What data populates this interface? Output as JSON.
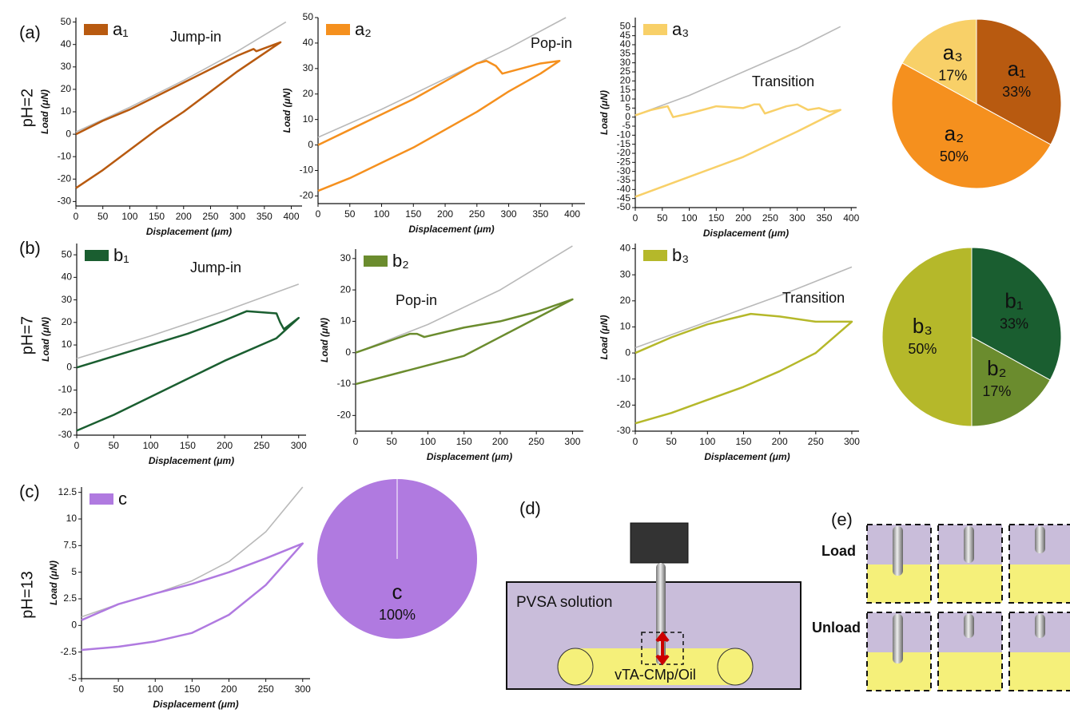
{
  "chart_data": [
    {
      "type": "line",
      "panel": "(a)",
      "row_label": "pH=2",
      "annotation": "Jump-in",
      "x_label": "Displacement (μm)",
      "y_label": "Load (μN)",
      "xlim": [
        0,
        420
      ],
      "xticks": [
        0,
        50,
        100,
        150,
        200,
        250,
        300,
        350,
        400
      ],
      "ylim": [
        -32,
        52
      ],
      "yticks": [
        -30,
        -20,
        -10,
        0,
        10,
        20,
        30,
        40,
        50
      ],
      "series": [
        {
          "color": "#b9b9b9",
          "x": [
            0,
            100,
            200,
            300,
            390
          ],
          "values": [
            1,
            12,
            24,
            37,
            50
          ]
        },
        {
          "name": "a₁",
          "color": "#b85a10",
          "x": [
            0,
            50,
            100,
            150,
            200,
            250,
            300,
            330,
            335,
            380,
            300,
            250,
            200,
            150,
            100,
            50,
            0
          ],
          "values": [
            0,
            6,
            11,
            17,
            23,
            29,
            35,
            38,
            37,
            41,
            28,
            19,
            10,
            2,
            -7,
            -16,
            -24
          ]
        }
      ]
    },
    {
      "type": "line",
      "annotation": "Pop-in",
      "x_label": "Displacement (μm)",
      "y_label": "Load (μN)",
      "xlim": [
        0,
        420
      ],
      "xticks": [
        0,
        50,
        100,
        150,
        200,
        250,
        300,
        350,
        400
      ],
      "ylim": [
        -23,
        50
      ],
      "yticks": [
        -20,
        -10,
        0,
        10,
        20,
        30,
        40,
        50
      ],
      "series": [
        {
          "color": "#b9b9b9",
          "x": [
            0,
            100,
            200,
            300,
            390
          ],
          "values": [
            3,
            14,
            26,
            38,
            50
          ]
        },
        {
          "name": "a₂",
          "color": "#f5901e",
          "x": [
            0,
            50,
            100,
            150,
            200,
            250,
            265,
            280,
            290,
            320,
            350,
            380,
            350,
            300,
            250,
            200,
            150,
            100,
            50,
            0
          ],
          "values": [
            0,
            6,
            12,
            18,
            25,
            32,
            33,
            31,
            28,
            30,
            32,
            33,
            28,
            21,
            13,
            6,
            -1,
            -7,
            -13,
            -18
          ]
        }
      ]
    },
    {
      "type": "line",
      "annotation": "Transition",
      "x_label": "Displacement (μm)",
      "y_label": "Load (μN)",
      "xlim": [
        0,
        410
      ],
      "xticks": [
        0,
        50,
        100,
        150,
        200,
        250,
        300,
        350,
        400
      ],
      "ylim": [
        -50,
        55
      ],
      "yticks": [
        -50,
        -45,
        -40,
        -35,
        -30,
        -25,
        -20,
        -15,
        -10,
        -5,
        0,
        5,
        10,
        15,
        20,
        25,
        30,
        35,
        40,
        45,
        50
      ],
      "series": [
        {
          "color": "#b9b9b9",
          "x": [
            0,
            100,
            200,
            300,
            380
          ],
          "values": [
            1,
            12,
            25,
            38,
            50
          ]
        },
        {
          "name": "a₃",
          "color": "#f8d068",
          "x": [
            0,
            30,
            60,
            70,
            100,
            150,
            200,
            220,
            230,
            240,
            280,
            300,
            320,
            340,
            360,
            380,
            300,
            200,
            100,
            0
          ],
          "values": [
            1,
            4,
            6,
            0,
            2,
            6,
            5,
            7,
            7,
            2,
            6,
            7,
            4,
            5,
            3,
            4,
            -8,
            -22,
            -33,
            -44
          ]
        }
      ]
    },
    {
      "type": "pie",
      "categories": [
        "a₁",
        "a₂",
        "a₃"
      ],
      "values": [
        33,
        50,
        17
      ],
      "value_labels": [
        "33%",
        "50%",
        "17%"
      ],
      "colors": [
        "#b85a10",
        "#f5901e",
        "#f8d068"
      ]
    },
    {
      "type": "line",
      "panel": "(b)",
      "row_label": "pH=7",
      "annotation": "Jump-in",
      "x_label": "Displacement (μm)",
      "y_label": "Load (μN)",
      "xlim": [
        0,
        310
      ],
      "xticks": [
        0,
        50,
        100,
        150,
        200,
        250,
        300
      ],
      "ylim": [
        -30,
        55
      ],
      "yticks": [
        -30,
        -20,
        -10,
        0,
        10,
        20,
        30,
        40,
        50
      ],
      "series": [
        {
          "color": "#b9b9b9",
          "x": [
            0,
            100,
            200,
            300
          ],
          "values": [
            4,
            14,
            25,
            37
          ]
        },
        {
          "name": "b₁",
          "color": "#1a5e30",
          "x": [
            0,
            50,
            100,
            150,
            200,
            230,
            270,
            275,
            280,
            300,
            270,
            200,
            150,
            100,
            50,
            0
          ],
          "values": [
            0,
            5,
            10,
            15,
            21,
            25,
            24,
            20,
            17,
            22,
            13,
            3,
            -5,
            -13,
            -21,
            -28
          ]
        }
      ]
    },
    {
      "type": "line",
      "annotation": "Pop-in",
      "x_label": "Displacement (μm)",
      "y_label": "Load (μN)",
      "xlim": [
        0,
        315
      ],
      "xticks": [
        0,
        50,
        100,
        150,
        200,
        250,
        300
      ],
      "ylim": [
        -25,
        33
      ],
      "yticks": [
        -20,
        -10,
        0,
        10,
        20,
        30
      ],
      "series": [
        {
          "color": "#b9b9b9",
          "x": [
            0,
            100,
            200,
            300
          ],
          "values": [
            0,
            9,
            20,
            34
          ]
        },
        {
          "name": "b₂",
          "color": "#6b8c2e",
          "x": [
            0,
            50,
            75,
            85,
            95,
            150,
            200,
            250,
            300,
            250,
            200,
            150,
            100,
            50,
            0
          ],
          "values": [
            0,
            4,
            6,
            6,
            5,
            8,
            10,
            13,
            17,
            11,
            5,
            -1,
            -4,
            -7,
            -10
          ]
        }
      ]
    },
    {
      "type": "line",
      "annotation": "Transition",
      "x_label": "Displacement (μm)",
      "y_label": "Load (μN)",
      "xlim": [
        0,
        310
      ],
      "xticks": [
        0,
        50,
        100,
        150,
        200,
        250,
        300
      ],
      "ylim": [
        -30,
        42
      ],
      "yticks": [
        -30,
        -20,
        -10,
        0,
        10,
        20,
        30,
        40
      ],
      "series": [
        {
          "color": "#b9b9b9",
          "x": [
            0,
            100,
            200,
            300
          ],
          "values": [
            2,
            12,
            22,
            33
          ]
        },
        {
          "name": "b₃",
          "color": "#b5b82a",
          "x": [
            0,
            50,
            100,
            160,
            200,
            250,
            300,
            250,
            200,
            150,
            100,
            50,
            0
          ],
          "values": [
            0,
            6,
            11,
            15,
            14,
            12,
            12,
            0,
            -7,
            -13,
            -18,
            -23,
            -27
          ]
        }
      ]
    },
    {
      "type": "pie",
      "categories": [
        "b₁",
        "b₂",
        "b₃"
      ],
      "values": [
        33,
        17,
        50
      ],
      "value_labels": [
        "33%",
        "17%",
        "50%"
      ],
      "colors": [
        "#1a5e30",
        "#6b8c2e",
        "#b5b82a"
      ]
    },
    {
      "type": "line",
      "panel": "(c)",
      "row_label": "pH=13",
      "x_label": "Displacement (μm)",
      "y_label": "Load (μN)",
      "xlim": [
        0,
        310
      ],
      "xticks": [
        0,
        50,
        100,
        150,
        200,
        250,
        300
      ],
      "ylim": [
        -5,
        13
      ],
      "yticks": [
        -5,
        -2.5,
        0,
        2.5,
        5,
        7.5,
        10,
        12.5
      ],
      "series": [
        {
          "color": "#b9b9b9",
          "x": [
            0,
            50,
            100,
            150,
            200,
            250,
            300
          ],
          "values": [
            0.8,
            2,
            3,
            4.2,
            6,
            8.8,
            13
          ]
        },
        {
          "name": "c",
          "color": "#b07ae0",
          "x": [
            0,
            50,
            100,
            150,
            200,
            250,
            300,
            250,
            200,
            150,
            100,
            50,
            0
          ],
          "values": [
            0.5,
            2,
            3,
            3.9,
            5,
            6.3,
            7.7,
            3.8,
            1,
            -0.7,
            -1.5,
            -2,
            -2.3
          ]
        }
      ]
    },
    {
      "type": "pie",
      "categories": [
        "c"
      ],
      "values": [
        100
      ],
      "value_labels": [
        "100%"
      ],
      "colors": [
        "#b07ae0"
      ]
    }
  ],
  "diagram": {
    "panel_d": "(d)",
    "solution": "PVSA solution",
    "droplet": "vTA-CMp/Oil",
    "panel_e": "(e)",
    "load": "Load",
    "unload": "Unload"
  }
}
